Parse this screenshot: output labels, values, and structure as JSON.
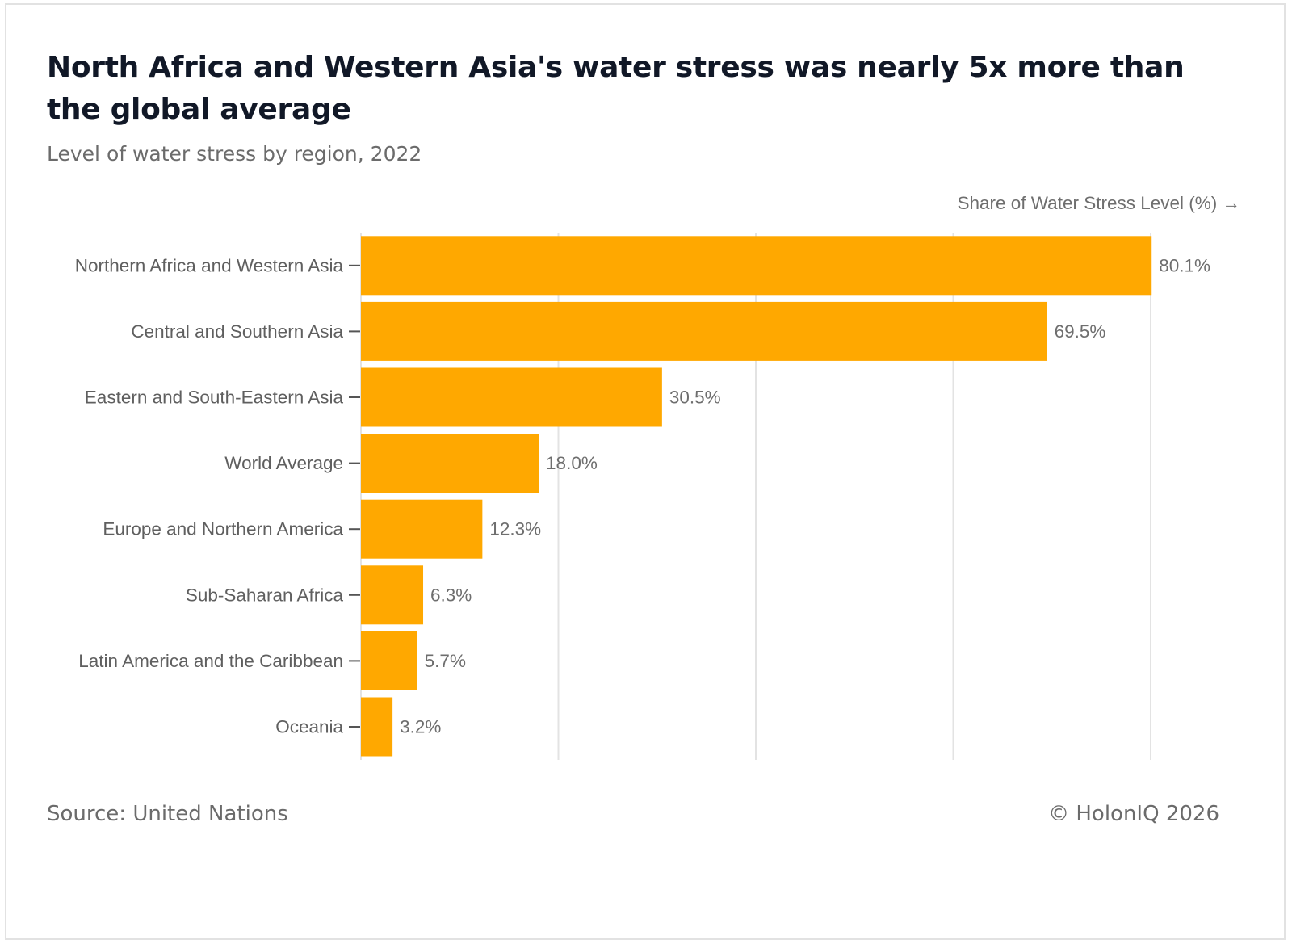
{
  "title": "North Africa and Western Asia's water stress was nearly 5x more than the global average",
  "subtitle": "Level of water stress by region, 2022",
  "footer": {
    "source": "Source: United Nations",
    "credit": "© HolonIQ 2026"
  },
  "colors": {
    "bar": "#FFA800",
    "gridline": "#e3e3e3",
    "axis_tick": "#555555"
  },
  "chart_data": {
    "type": "bar",
    "orientation": "horizontal",
    "title": "North Africa and Western Asia's water stress was nearly 5x more than the global average",
    "subtitle": "Level of water stress by region, 2022",
    "xlabel": "Share of Water Stress Level (%) →",
    "ylabel": "",
    "xlim": [
      0,
      80
    ],
    "grid": true,
    "gridlines": [
      0,
      20,
      40,
      60,
      80
    ],
    "categories": [
      "Northern Africa and Western Asia",
      "Central and Southern Asia",
      "Eastern and South-Eastern Asia",
      "World Average",
      "Europe and Northern America",
      "Sub-Saharan Africa",
      "Latin America and the Caribbean",
      "Oceania"
    ],
    "values": [
      80.1,
      69.5,
      30.5,
      18.0,
      12.3,
      6.3,
      5.7,
      3.2
    ],
    "value_labels": [
      "80.1%",
      "69.5%",
      "30.5%",
      "18.0%",
      "12.3%",
      "6.3%",
      "5.7%",
      "3.2%"
    ]
  }
}
